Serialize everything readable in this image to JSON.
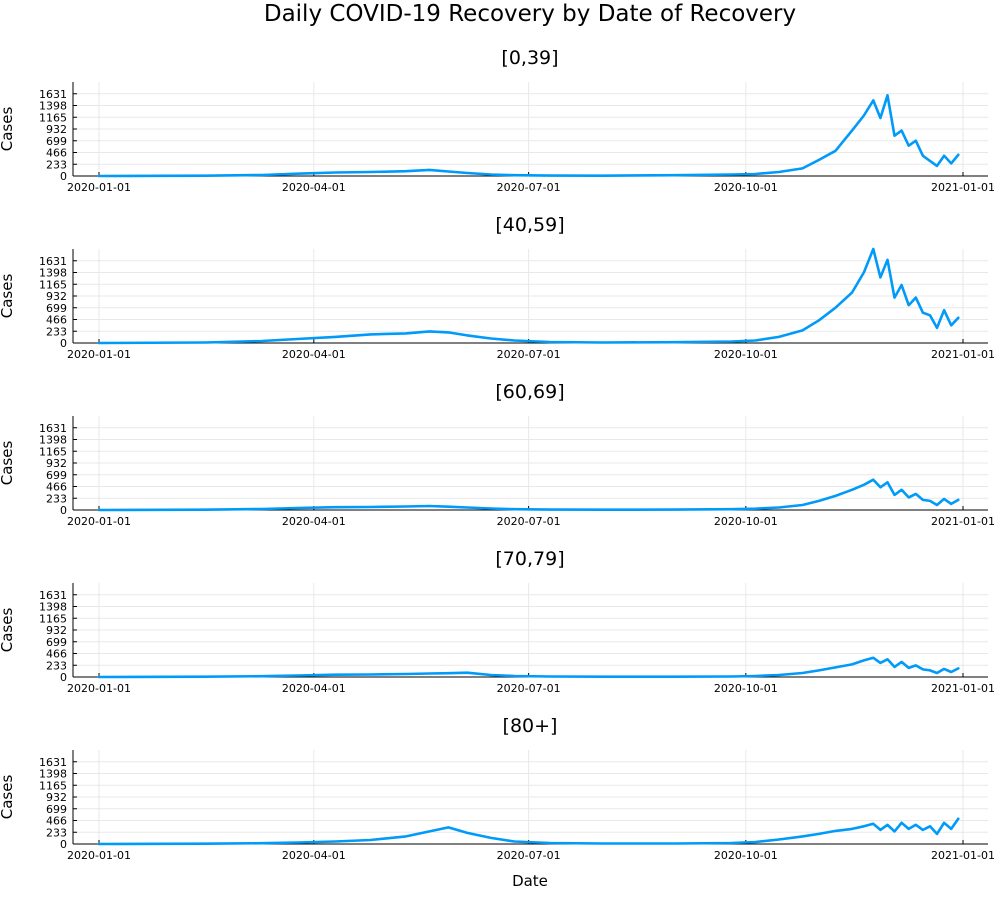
{
  "figure": {
    "title": "Daily COVID-19 Recovery by Date of Recovery",
    "xlabel": "Date"
  },
  "colors": {
    "series": "#009af9",
    "grid": "#e8e8e8",
    "axis": "#000000"
  },
  "chart_data": [
    {
      "type": "line",
      "title": "[0,39]",
      "ylabel": "Cases",
      "ylim": [
        0,
        1864
      ],
      "yticks": [
        0,
        233,
        466,
        699,
        932,
        1165,
        1398,
        1631
      ],
      "xticks": [
        "2020-01-01",
        "2020-04-01",
        "2020-07-01",
        "2020-10-01",
        "2021-01-01"
      ],
      "x": [
        "2020-01-01",
        "2020-02-15",
        "2020-03-10",
        "2020-03-25",
        "2020-04-10",
        "2020-04-25",
        "2020-05-10",
        "2020-05-20",
        "2020-05-28",
        "2020-06-05",
        "2020-06-15",
        "2020-06-25",
        "2020-07-10",
        "2020-08-01",
        "2020-09-01",
        "2020-09-25",
        "2020-10-05",
        "2020-10-15",
        "2020-10-25",
        "2020-11-01",
        "2020-11-08",
        "2020-11-15",
        "2020-11-20",
        "2020-11-24",
        "2020-11-27",
        "2020-11-30",
        "2020-12-03",
        "2020-12-06",
        "2020-12-09",
        "2020-12-12",
        "2020-12-15",
        "2020-12-18",
        "2020-12-21",
        "2020-12-24",
        "2020-12-27",
        "2020-12-30"
      ],
      "series": [
        {
          "values": [
            0,
            5,
            20,
            45,
            70,
            80,
            95,
            120,
            90,
            60,
            30,
            15,
            8,
            5,
            15,
            30,
            40,
            80,
            150,
            320,
            500,
            900,
            1200,
            1500,
            1150,
            1600,
            800,
            900,
            600,
            700,
            400,
            300,
            200,
            400,
            250,
            420
          ]
        }
      ]
    },
    {
      "type": "line",
      "title": "[40,59]",
      "ylabel": "Cases",
      "ylim": [
        0,
        1864
      ],
      "yticks": [
        0,
        233,
        466,
        699,
        932,
        1165,
        1398,
        1631
      ],
      "xticks": [
        "2020-01-01",
        "2020-04-01",
        "2020-07-01",
        "2020-10-01",
        "2021-01-01"
      ],
      "x": [
        "2020-01-01",
        "2020-02-15",
        "2020-03-10",
        "2020-03-25",
        "2020-04-10",
        "2020-04-25",
        "2020-05-10",
        "2020-05-20",
        "2020-05-28",
        "2020-06-05",
        "2020-06-15",
        "2020-06-25",
        "2020-07-10",
        "2020-08-01",
        "2020-09-01",
        "2020-09-25",
        "2020-10-05",
        "2020-10-15",
        "2020-10-25",
        "2020-11-01",
        "2020-11-08",
        "2020-11-15",
        "2020-11-20",
        "2020-11-24",
        "2020-11-27",
        "2020-11-30",
        "2020-12-03",
        "2020-12-06",
        "2020-12-09",
        "2020-12-12",
        "2020-12-15",
        "2020-12-18",
        "2020-12-21",
        "2020-12-24",
        "2020-12-27",
        "2020-12-30"
      ],
      "series": [
        {
          "values": [
            0,
            10,
            40,
            80,
            120,
            170,
            190,
            230,
            210,
            150,
            90,
            50,
            20,
            10,
            15,
            30,
            50,
            120,
            250,
            450,
            700,
            1000,
            1400,
            1864,
            1300,
            1650,
            900,
            1150,
            750,
            900,
            600,
            550,
            300,
            650,
            350,
            500
          ]
        }
      ]
    },
    {
      "type": "line",
      "title": "[60,69]",
      "ylabel": "Cases",
      "ylim": [
        0,
        1864
      ],
      "yticks": [
        0,
        233,
        466,
        699,
        932,
        1165,
        1398,
        1631
      ],
      "xticks": [
        "2020-01-01",
        "2020-04-01",
        "2020-07-01",
        "2020-10-01",
        "2021-01-01"
      ],
      "x": [
        "2020-01-01",
        "2020-02-15",
        "2020-03-10",
        "2020-03-25",
        "2020-04-10",
        "2020-04-25",
        "2020-05-10",
        "2020-05-20",
        "2020-05-28",
        "2020-06-05",
        "2020-06-15",
        "2020-06-25",
        "2020-07-10",
        "2020-08-01",
        "2020-09-01",
        "2020-09-25",
        "2020-10-05",
        "2020-10-15",
        "2020-10-25",
        "2020-11-01",
        "2020-11-08",
        "2020-11-15",
        "2020-11-20",
        "2020-11-24",
        "2020-11-27",
        "2020-11-30",
        "2020-12-03",
        "2020-12-06",
        "2020-12-09",
        "2020-12-12",
        "2020-12-15",
        "2020-12-18",
        "2020-12-21",
        "2020-12-24",
        "2020-12-27",
        "2020-12-30"
      ],
      "series": [
        {
          "values": [
            0,
            5,
            20,
            40,
            55,
            60,
            70,
            80,
            65,
            50,
            30,
            15,
            8,
            5,
            8,
            15,
            25,
            50,
            100,
            180,
            280,
            400,
            500,
            600,
            450,
            550,
            300,
            400,
            250,
            320,
            200,
            180,
            100,
            220,
            120,
            200
          ]
        }
      ]
    },
    {
      "type": "line",
      "title": "[70,79]",
      "ylabel": "Cases",
      "ylim": [
        0,
        1864
      ],
      "yticks": [
        0,
        233,
        466,
        699,
        932,
        1165,
        1398,
        1631
      ],
      "xticks": [
        "2020-01-01",
        "2020-04-01",
        "2020-07-01",
        "2020-10-01",
        "2021-01-01"
      ],
      "x": [
        "2020-01-01",
        "2020-02-15",
        "2020-03-10",
        "2020-03-25",
        "2020-04-10",
        "2020-04-25",
        "2020-05-10",
        "2020-05-20",
        "2020-05-28",
        "2020-06-05",
        "2020-06-15",
        "2020-06-25",
        "2020-07-10",
        "2020-08-01",
        "2020-09-01",
        "2020-09-25",
        "2020-10-05",
        "2020-10-15",
        "2020-10-25",
        "2020-11-01",
        "2020-11-08",
        "2020-11-15",
        "2020-11-20",
        "2020-11-24",
        "2020-11-27",
        "2020-11-30",
        "2020-12-03",
        "2020-12-06",
        "2020-12-09",
        "2020-12-12",
        "2020-12-15",
        "2020-12-18",
        "2020-12-21",
        "2020-12-24",
        "2020-12-27",
        "2020-12-30"
      ],
      "series": [
        {
          "values": [
            0,
            5,
            15,
            30,
            45,
            50,
            60,
            70,
            75,
            85,
            40,
            20,
            10,
            5,
            5,
            10,
            20,
            40,
            80,
            130,
            190,
            250,
            330,
            380,
            280,
            350,
            200,
            300,
            180,
            230,
            150,
            130,
            80,
            160,
            100,
            170
          ]
        }
      ]
    },
    {
      "type": "line",
      "title": "[80+]",
      "ylabel": "Cases",
      "ylim": [
        0,
        1864
      ],
      "yticks": [
        0,
        233,
        466,
        699,
        932,
        1165,
        1398,
        1631
      ],
      "xticks": [
        "2020-01-01",
        "2020-04-01",
        "2020-07-01",
        "2020-10-01",
        "2021-01-01"
      ],
      "x": [
        "2020-01-01",
        "2020-02-15",
        "2020-03-10",
        "2020-03-25",
        "2020-04-10",
        "2020-04-25",
        "2020-05-10",
        "2020-05-20",
        "2020-05-28",
        "2020-06-05",
        "2020-06-15",
        "2020-06-25",
        "2020-07-10",
        "2020-08-01",
        "2020-09-01",
        "2020-09-25",
        "2020-10-05",
        "2020-10-15",
        "2020-10-25",
        "2020-11-01",
        "2020-11-08",
        "2020-11-15",
        "2020-11-20",
        "2020-11-24",
        "2020-11-27",
        "2020-11-30",
        "2020-12-03",
        "2020-12-06",
        "2020-12-09",
        "2020-12-12",
        "2020-12-15",
        "2020-12-18",
        "2020-12-21",
        "2020-12-24",
        "2020-12-27",
        "2020-12-30"
      ],
      "series": [
        {
          "values": [
            0,
            5,
            15,
            30,
            50,
            80,
            150,
            250,
            330,
            220,
            120,
            50,
            20,
            10,
            10,
            20,
            40,
            90,
            150,
            200,
            260,
            300,
            350,
            400,
            280,
            380,
            250,
            420,
            300,
            380,
            280,
            350,
            200,
            420,
            300,
            500
          ]
        }
      ]
    }
  ]
}
